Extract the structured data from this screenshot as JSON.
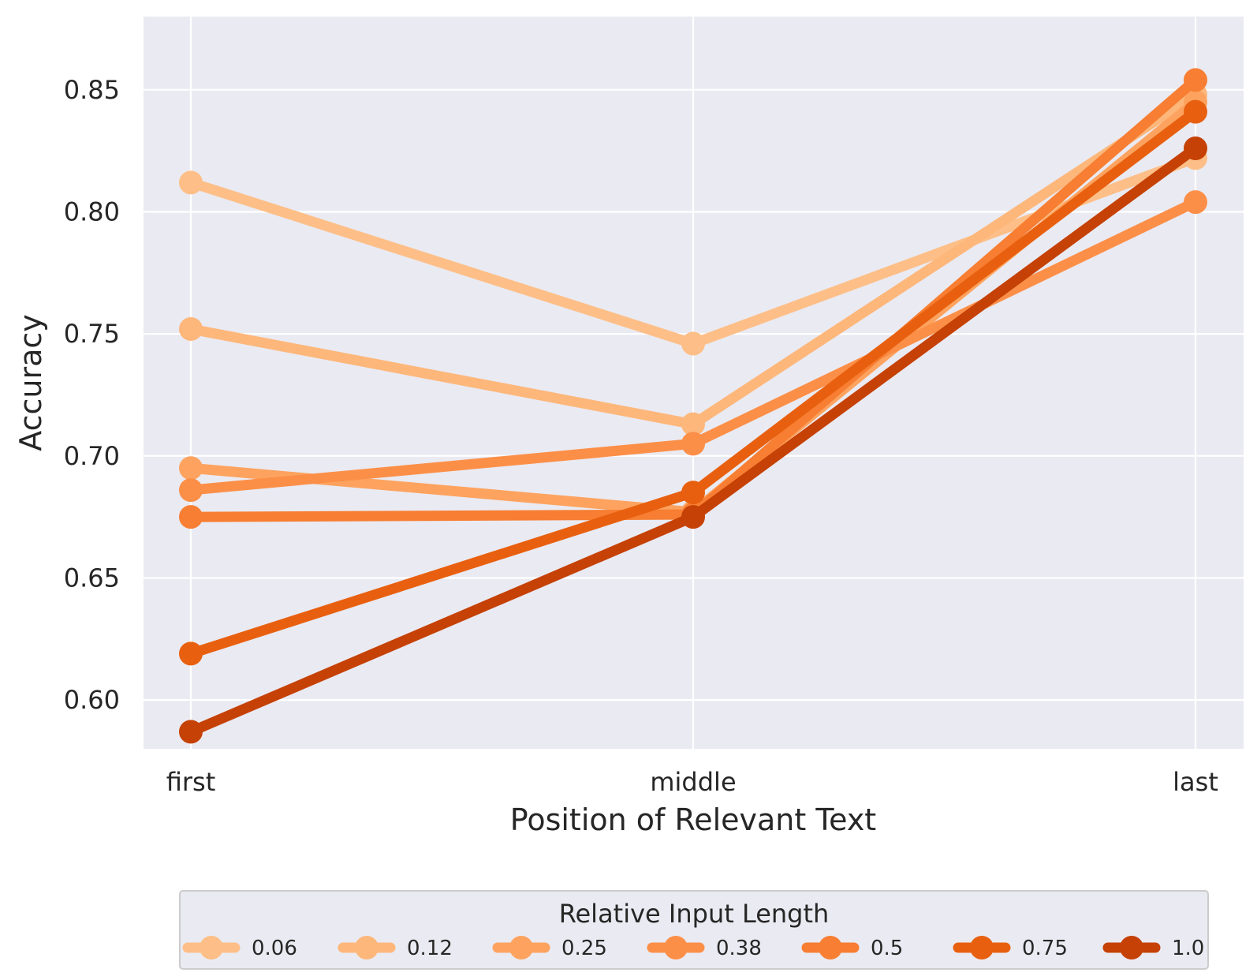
{
  "chart_data": {
    "type": "line",
    "categories": [
      "first",
      "middle",
      "last"
    ],
    "xlabel": "Position of Relevant Text",
    "ylabel": "Accuracy",
    "ylim": [
      0.58,
      0.88
    ],
    "yticks": [
      "0.60",
      "0.65",
      "0.70",
      "0.75",
      "0.80",
      "0.85"
    ],
    "grid": true,
    "legend": {
      "title": "Relative Input Length",
      "placement": "bottom-center"
    },
    "series": [
      {
        "name": "0.06",
        "color": "#fdbf87",
        "values": [
          0.812,
          0.746,
          0.822
        ]
      },
      {
        "name": "0.12",
        "color": "#fdb77b",
        "values": [
          0.752,
          0.713,
          0.848
        ]
      },
      {
        "name": "0.25",
        "color": "#fda35f",
        "values": [
          0.695,
          0.677,
          0.845
        ]
      },
      {
        "name": "0.38",
        "color": "#fc8f48",
        "values": [
          0.686,
          0.705,
          0.804
        ]
      },
      {
        "name": "0.5",
        "color": "#f77e32",
        "values": [
          0.675,
          0.676,
          0.854
        ]
      },
      {
        "name": "0.75",
        "color": "#e8600f",
        "values": [
          0.619,
          0.685,
          0.841
        ]
      },
      {
        "name": "1.0",
        "color": "#c54105",
        "values": [
          0.587,
          0.675,
          0.826
        ]
      }
    ]
  }
}
